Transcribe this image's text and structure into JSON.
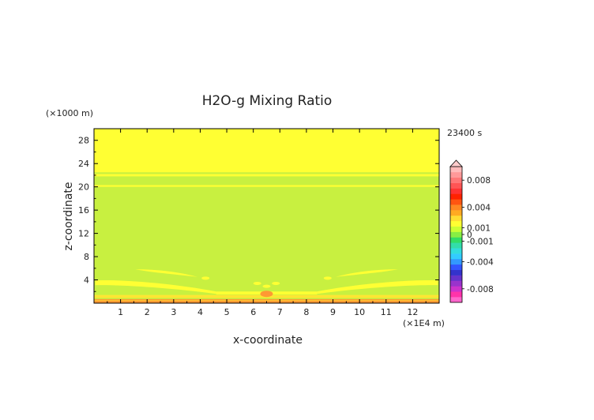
{
  "chart_data": {
    "type": "heatmap",
    "title": "H2O-g Mixing Ratio",
    "xlabel": "x-coordinate",
    "ylabel": "z-coordinate",
    "x_unit": "(×1E4 m)",
    "y_unit": "(×1000 m)",
    "time_label": "23400 s",
    "xlim": [
      0,
      13
    ],
    "ylim": [
      0,
      30
    ],
    "x_ticks": [
      "1",
      "2",
      "3",
      "4",
      "5",
      "6",
      "7",
      "8",
      "9",
      "10",
      "11",
      "12"
    ],
    "x_tick_values": [
      1,
      2,
      3,
      4,
      5,
      6,
      7,
      8,
      9,
      10,
      11,
      12
    ],
    "y_ticks": [
      "4",
      "8",
      "12",
      "16",
      "20",
      "24",
      "28"
    ],
    "y_tick_values": [
      4,
      8,
      12,
      16,
      20,
      24,
      28
    ],
    "background_level": "0 to 0.001",
    "regions": [
      {
        "name": "upper layer",
        "x": [
          0,
          13
        ],
        "z": [
          22.5,
          30
        ],
        "level": "0.001"
      },
      {
        "name": "stratified band",
        "x": [
          0,
          13
        ],
        "z": [
          21.8,
          22.2
        ],
        "level": "0.001"
      },
      {
        "name": "stratified band",
        "x": [
          0,
          13
        ],
        "z": [
          20.0,
          20.3
        ],
        "level": "0.001"
      },
      {
        "name": "surface layer",
        "x": [
          0,
          13
        ],
        "z": [
          0,
          0.7
        ],
        "level": "0.004"
      },
      {
        "name": "near-surface band",
        "x": [
          0,
          13
        ],
        "z": [
          0.9,
          1.4
        ],
        "level": "0.001"
      }
    ],
    "colorbar": {
      "labels": [
        "0.008",
        "0.004",
        "0.001",
        "0",
        "-0.001",
        "-0.004",
        "-0.008"
      ],
      "values": [
        0.008,
        0.004,
        0.001,
        0,
        -0.001,
        -0.004,
        -0.008
      ],
      "range": [
        -0.01,
        0.01
      ],
      "colors": [
        "#ff66cc",
        "#ff33aa",
        "#cc33cc",
        "#9933cc",
        "#6633cc",
        "#3333cc",
        "#3355ff",
        "#3399ff",
        "#33ccff",
        "#33dddd",
        "#33ddaa",
        "#33dd66",
        "#88ee44",
        "#ccff33",
        "#ffff33",
        "#ffdd33",
        "#ffaa22",
        "#ff8822",
        "#ff5511",
        "#ff2200",
        "#ff3333",
        "#ff5555",
        "#ff7777",
        "#ff9999",
        "#ffbbbb"
      ]
    },
    "colors": {
      "background_field": "#c8f040",
      "upper_layer": "#ffff33",
      "near_surface": "#ffe633",
      "surface": "#ff9933",
      "axis": "#000000"
    }
  }
}
